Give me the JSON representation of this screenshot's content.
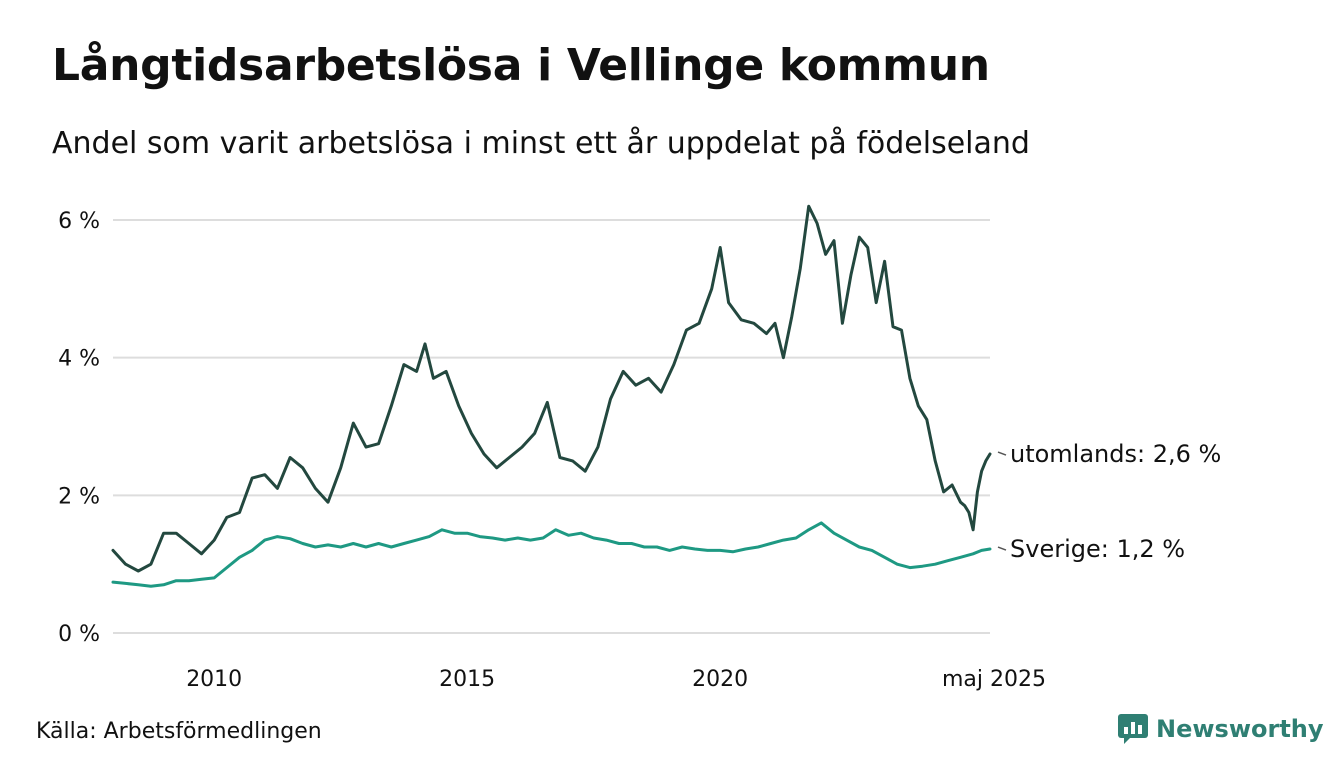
{
  "title": "Långtidsarbetslösa i Vellinge kommun",
  "subtitle": "Andel som varit arbetslösa i minst ett år uppdelat på födelseland",
  "source": "Källa: Arbetsförmedlingen",
  "brand": {
    "name": "Newsworthy",
    "icon": "newsworthy-logo-icon"
  },
  "colors": {
    "utomlands": "#23483f",
    "sverige": "#1e9983",
    "grid": "#dddddd",
    "text": "#111111"
  },
  "chart_data": {
    "type": "line",
    "title": "Långtidsarbetslösa i Vellinge kommun",
    "ylim": [
      0,
      6
    ],
    "yticks": [
      0,
      2,
      4,
      6
    ],
    "ytick_labels": [
      "0 %",
      "2 %",
      "4 %",
      "6 %"
    ],
    "xlim": [
      "2008-01",
      "2025-05"
    ],
    "xticks": [
      "2010-01",
      "2015-01",
      "2020-01",
      "2025-05"
    ],
    "xtick_labels": [
      "2010",
      "2015",
      "2020",
      "maj 2025"
    ],
    "grid": true,
    "legend": "end-of-line labels",
    "series": [
      {
        "key": "utomlands",
        "label": "utomlands: 2,6 %",
        "points": [
          [
            "2008-01",
            1.2
          ],
          [
            "2008-04",
            1.0
          ],
          [
            "2008-07",
            0.9
          ],
          [
            "2008-10",
            1.0
          ],
          [
            "2009-01",
            1.45
          ],
          [
            "2009-04",
            1.45
          ],
          [
            "2009-07",
            1.3
          ],
          [
            "2009-10",
            1.15
          ],
          [
            "2010-01",
            1.35
          ],
          [
            "2010-04",
            1.68
          ],
          [
            "2010-07",
            1.75
          ],
          [
            "2010-10",
            2.25
          ],
          [
            "2011-01",
            2.3
          ],
          [
            "2011-04",
            2.1
          ],
          [
            "2011-07",
            2.55
          ],
          [
            "2011-10",
            2.4
          ],
          [
            "2012-01",
            2.1
          ],
          [
            "2012-04",
            1.9
          ],
          [
            "2012-07",
            2.4
          ],
          [
            "2012-10",
            3.05
          ],
          [
            "2013-01",
            2.7
          ],
          [
            "2013-04",
            2.75
          ],
          [
            "2013-07",
            3.3
          ],
          [
            "2013-10",
            3.9
          ],
          [
            "2014-01",
            3.8
          ],
          [
            "2014-03",
            4.2
          ],
          [
            "2014-05",
            3.7
          ],
          [
            "2014-08",
            3.8
          ],
          [
            "2014-11",
            3.3
          ],
          [
            "2015-02",
            2.9
          ],
          [
            "2015-05",
            2.6
          ],
          [
            "2015-08",
            2.4
          ],
          [
            "2015-11",
            2.55
          ],
          [
            "2016-02",
            2.7
          ],
          [
            "2016-05",
            2.9
          ],
          [
            "2016-08",
            3.35
          ],
          [
            "2016-11",
            2.55
          ],
          [
            "2017-02",
            2.5
          ],
          [
            "2017-05",
            2.35
          ],
          [
            "2017-08",
            2.7
          ],
          [
            "2017-11",
            3.4
          ],
          [
            "2018-02",
            3.8
          ],
          [
            "2018-05",
            3.6
          ],
          [
            "2018-08",
            3.7
          ],
          [
            "2018-11",
            3.5
          ],
          [
            "2019-02",
            3.9
          ],
          [
            "2019-05",
            4.4
          ],
          [
            "2019-08",
            4.5
          ],
          [
            "2019-11",
            5.0
          ],
          [
            "2020-01",
            5.6
          ],
          [
            "2020-03",
            4.8
          ],
          [
            "2020-06",
            4.55
          ],
          [
            "2020-09",
            4.5
          ],
          [
            "2020-12",
            4.35
          ],
          [
            "2021-02",
            4.5
          ],
          [
            "2021-04",
            4.0
          ],
          [
            "2021-06",
            4.6
          ],
          [
            "2021-08",
            5.3
          ],
          [
            "2021-10",
            6.2
          ],
          [
            "2021-12",
            5.95
          ],
          [
            "2022-02",
            5.5
          ],
          [
            "2022-04",
            5.7
          ],
          [
            "2022-06",
            4.5
          ],
          [
            "2022-08",
            5.2
          ],
          [
            "2022-10",
            5.75
          ],
          [
            "2022-12",
            5.6
          ],
          [
            "2023-02",
            4.8
          ],
          [
            "2023-04",
            5.4
          ],
          [
            "2023-06",
            4.45
          ],
          [
            "2023-08",
            4.4
          ],
          [
            "2023-10",
            3.7
          ],
          [
            "2023-12",
            3.3
          ],
          [
            "2024-02",
            3.1
          ],
          [
            "2024-04",
            2.5
          ],
          [
            "2024-06",
            2.05
          ],
          [
            "2024-08",
            2.15
          ],
          [
            "2024-10",
            1.9
          ],
          [
            "2024-11",
            1.85
          ],
          [
            "2024-12",
            1.75
          ],
          [
            "2025-01",
            1.5
          ],
          [
            "2025-02",
            2.05
          ],
          [
            "2025-03",
            2.35
          ],
          [
            "2025-04",
            2.5
          ],
          [
            "2025-05",
            2.6
          ]
        ]
      },
      {
        "key": "sverige",
        "label": "Sverige: 1,2 %",
        "points": [
          [
            "2008-01",
            0.74
          ],
          [
            "2008-04",
            0.72
          ],
          [
            "2008-07",
            0.7
          ],
          [
            "2008-10",
            0.68
          ],
          [
            "2009-01",
            0.7
          ],
          [
            "2009-04",
            0.76
          ],
          [
            "2009-07",
            0.76
          ],
          [
            "2009-10",
            0.78
          ],
          [
            "2010-01",
            0.8
          ],
          [
            "2010-04",
            0.95
          ],
          [
            "2010-07",
            1.1
          ],
          [
            "2010-10",
            1.2
          ],
          [
            "2011-01",
            1.35
          ],
          [
            "2011-04",
            1.4
          ],
          [
            "2011-07",
            1.37
          ],
          [
            "2011-10",
            1.3
          ],
          [
            "2012-01",
            1.25
          ],
          [
            "2012-04",
            1.28
          ],
          [
            "2012-07",
            1.25
          ],
          [
            "2012-10",
            1.3
          ],
          [
            "2013-01",
            1.25
          ],
          [
            "2013-04",
            1.3
          ],
          [
            "2013-07",
            1.25
          ],
          [
            "2013-10",
            1.3
          ],
          [
            "2014-01",
            1.35
          ],
          [
            "2014-04",
            1.4
          ],
          [
            "2014-07",
            1.5
          ],
          [
            "2014-10",
            1.45
          ],
          [
            "2015-01",
            1.45
          ],
          [
            "2015-04",
            1.4
          ],
          [
            "2015-07",
            1.38
          ],
          [
            "2015-10",
            1.35
          ],
          [
            "2016-01",
            1.38
          ],
          [
            "2016-04",
            1.35
          ],
          [
            "2016-07",
            1.38
          ],
          [
            "2016-10",
            1.5
          ],
          [
            "2017-01",
            1.42
          ],
          [
            "2017-04",
            1.45
          ],
          [
            "2017-07",
            1.38
          ],
          [
            "2017-10",
            1.35
          ],
          [
            "2018-01",
            1.3
          ],
          [
            "2018-04",
            1.3
          ],
          [
            "2018-07",
            1.25
          ],
          [
            "2018-10",
            1.25
          ],
          [
            "2019-01",
            1.2
          ],
          [
            "2019-04",
            1.25
          ],
          [
            "2019-07",
            1.22
          ],
          [
            "2019-10",
            1.2
          ],
          [
            "2020-01",
            1.2
          ],
          [
            "2020-04",
            1.18
          ],
          [
            "2020-07",
            1.22
          ],
          [
            "2020-10",
            1.25
          ],
          [
            "2021-01",
            1.3
          ],
          [
            "2021-04",
            1.35
          ],
          [
            "2021-07",
            1.38
          ],
          [
            "2021-10",
            1.5
          ],
          [
            "2022-01",
            1.6
          ],
          [
            "2022-04",
            1.45
          ],
          [
            "2022-07",
            1.35
          ],
          [
            "2022-10",
            1.25
          ],
          [
            "2023-01",
            1.2
          ],
          [
            "2023-04",
            1.1
          ],
          [
            "2023-07",
            1.0
          ],
          [
            "2023-10",
            0.95
          ],
          [
            "2024-01",
            0.97
          ],
          [
            "2024-04",
            1.0
          ],
          [
            "2024-07",
            1.05
          ],
          [
            "2024-10",
            1.1
          ],
          [
            "2025-01",
            1.15
          ],
          [
            "2025-03",
            1.2
          ],
          [
            "2025-05",
            1.22
          ]
        ]
      }
    ]
  }
}
